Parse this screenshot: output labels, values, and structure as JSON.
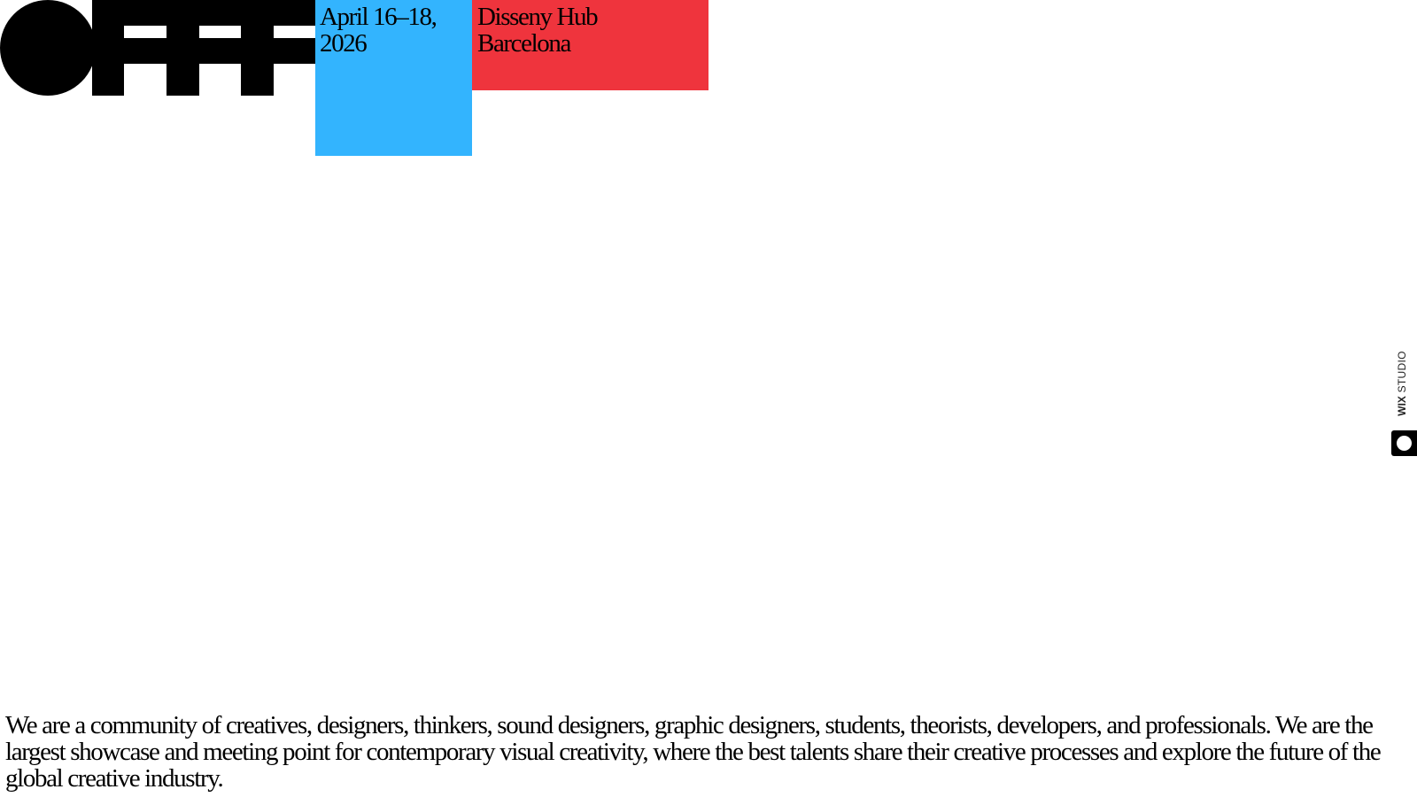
{
  "brand": {
    "logo_icon": "offf-logo",
    "logo_color": "#000000"
  },
  "event": {
    "dates": "April 16–18,\n2026",
    "dates_color": "#33b4fe",
    "venue": "Disseny Hub\nBarcelona",
    "venue_color": "#ef343d"
  },
  "wix_badge": {
    "brand_bold": "WIX",
    "brand_light": " STUDIO",
    "icon": "wix-toggle-icon"
  },
  "intro": {
    "text": "We are a community of creatives, designers, thinkers, sound designers, graphic designers, students, theorists, developers, and professionals. We are the largest showcase and meeting point for contemporary visual creativity, where the best talents share their creative processes and explore the future of the global creative industry."
  }
}
